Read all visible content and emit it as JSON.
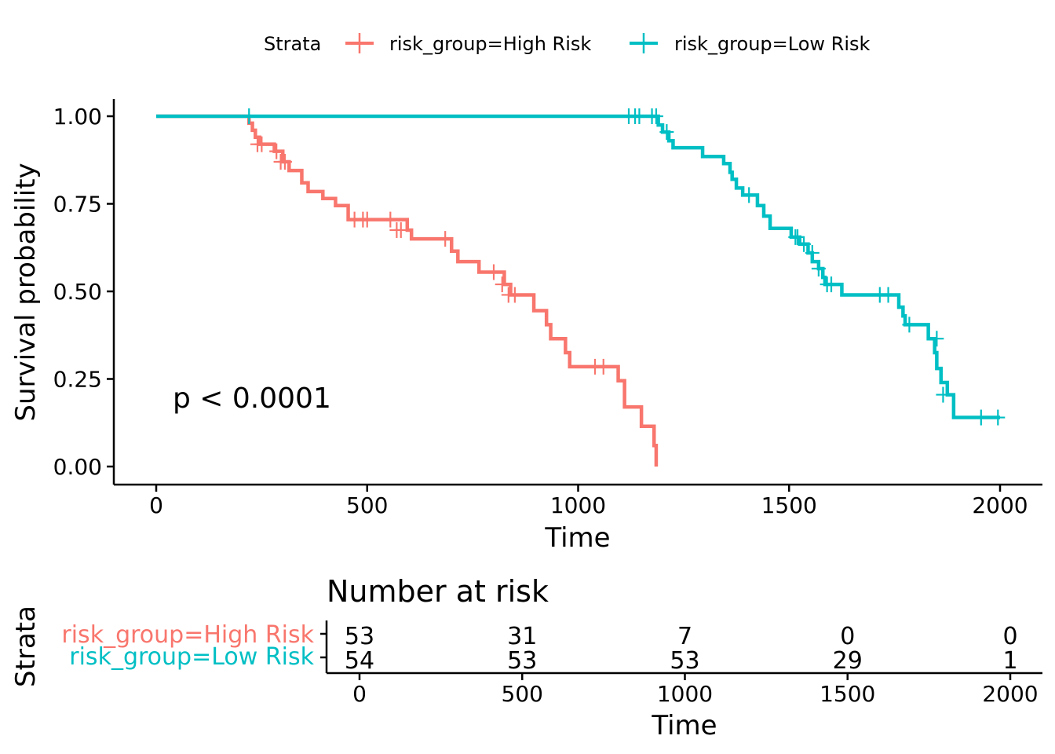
{
  "chart_data": {
    "type": "line",
    "subtype": "kaplan-meier",
    "xlabel": "Time",
    "ylabel": "Survival probability",
    "xlim": [
      0,
      2000
    ],
    "ylim": [
      0,
      1
    ],
    "x_ticks": [
      "0",
      "500",
      "1000",
      "1500",
      "2000"
    ],
    "y_ticks": [
      "0.00",
      "0.25",
      "0.50",
      "0.75",
      "1.00"
    ],
    "grid": false,
    "legend": {
      "title": "Strata",
      "position": "top"
    },
    "annotation": "p < 0.0001",
    "series": [
      {
        "name": "risk_group=High Risk",
        "color": "#F8766D",
        "steps": [
          [
            0,
            1.0
          ],
          [
            220,
            0.98
          ],
          [
            228,
            0.96
          ],
          [
            235,
            0.94
          ],
          [
            245,
            0.92
          ],
          [
            280,
            0.9
          ],
          [
            300,
            0.87
          ],
          [
            315,
            0.845
          ],
          [
            345,
            0.81
          ],
          [
            360,
            0.785
          ],
          [
            395,
            0.765
          ],
          [
            425,
            0.745
          ],
          [
            455,
            0.705
          ],
          [
            595,
            0.675
          ],
          [
            605,
            0.65
          ],
          [
            700,
            0.615
          ],
          [
            715,
            0.585
          ],
          [
            765,
            0.555
          ],
          [
            825,
            0.52
          ],
          [
            840,
            0.49
          ],
          [
            895,
            0.445
          ],
          [
            925,
            0.405
          ],
          [
            935,
            0.365
          ],
          [
            970,
            0.325
          ],
          [
            980,
            0.285
          ],
          [
            1095,
            0.245
          ],
          [
            1110,
            0.17
          ],
          [
            1150,
            0.115
          ],
          [
            1180,
            0.06
          ],
          [
            1185,
            0.0
          ]
        ],
        "end": 1185,
        "censors": [
          [
            240,
            0.92
          ],
          [
            250,
            0.92
          ],
          [
            285,
            0.9
          ],
          [
            295,
            0.87
          ],
          [
            305,
            0.87
          ],
          [
            470,
            0.705
          ],
          [
            490,
            0.705
          ],
          [
            500,
            0.705
          ],
          [
            555,
            0.705
          ],
          [
            570,
            0.675
          ],
          [
            580,
            0.675
          ],
          [
            685,
            0.65
          ],
          [
            800,
            0.555
          ],
          [
            820,
            0.52
          ],
          [
            835,
            0.49
          ],
          [
            850,
            0.49
          ],
          [
            1040,
            0.285
          ],
          [
            1060,
            0.285
          ]
        ]
      },
      {
        "name": "risk_group=Low Risk",
        "color": "#00BFC4",
        "steps": [
          [
            0,
            1.0
          ],
          [
            1190,
            0.975
          ],
          [
            1200,
            0.955
          ],
          [
            1215,
            0.93
          ],
          [
            1225,
            0.91
          ],
          [
            1295,
            0.885
          ],
          [
            1345,
            0.865
          ],
          [
            1360,
            0.84
          ],
          [
            1365,
            0.82
          ],
          [
            1375,
            0.795
          ],
          [
            1390,
            0.775
          ],
          [
            1425,
            0.745
          ],
          [
            1440,
            0.715
          ],
          [
            1455,
            0.68
          ],
          [
            1505,
            0.655
          ],
          [
            1525,
            0.635
          ],
          [
            1545,
            0.61
          ],
          [
            1555,
            0.585
          ],
          [
            1570,
            0.565
          ],
          [
            1580,
            0.54
          ],
          [
            1585,
            0.52
          ],
          [
            1625,
            0.49
          ],
          [
            1760,
            0.455
          ],
          [
            1770,
            0.43
          ],
          [
            1775,
            0.405
          ],
          [
            1830,
            0.365
          ],
          [
            1845,
            0.325
          ],
          [
            1850,
            0.28
          ],
          [
            1860,
            0.24
          ],
          [
            1875,
            0.205
          ],
          [
            1890,
            0.14
          ]
        ],
        "end": 2000,
        "censors": [
          [
            220,
            1.0
          ],
          [
            1120,
            1.0
          ],
          [
            1135,
            1.0
          ],
          [
            1145,
            1.0
          ],
          [
            1175,
            1.0
          ],
          [
            1185,
            1.0
          ],
          [
            1210,
            0.955
          ],
          [
            1405,
            0.775
          ],
          [
            1515,
            0.655
          ],
          [
            1520,
            0.655
          ],
          [
            1535,
            0.635
          ],
          [
            1555,
            0.61
          ],
          [
            1570,
            0.565
          ],
          [
            1590,
            0.52
          ],
          [
            1600,
            0.52
          ],
          [
            1715,
            0.49
          ],
          [
            1735,
            0.49
          ],
          [
            1785,
            0.405
          ],
          [
            1850,
            0.365
          ],
          [
            1865,
            0.205
          ],
          [
            1955,
            0.14
          ],
          [
            1995,
            0.14
          ]
        ]
      }
    ],
    "risk_table": {
      "title": "Number at risk",
      "ylabel": "Strata",
      "xlabel": "Time",
      "times": [
        0,
        500,
        1000,
        1500,
        2000
      ],
      "tick_labels": [
        "0",
        "500",
        "1000",
        "1500",
        "2000"
      ],
      "rows": [
        {
          "label": "risk_group=High Risk",
          "color": "#F8766D",
          "counts": [
            "53",
            "31",
            "7",
            "0",
            "0"
          ]
        },
        {
          "label": "risk_group=Low Risk",
          "color": "#00BFC4",
          "counts": [
            "54",
            "53",
            "53",
            "29",
            "1"
          ]
        }
      ]
    }
  }
}
